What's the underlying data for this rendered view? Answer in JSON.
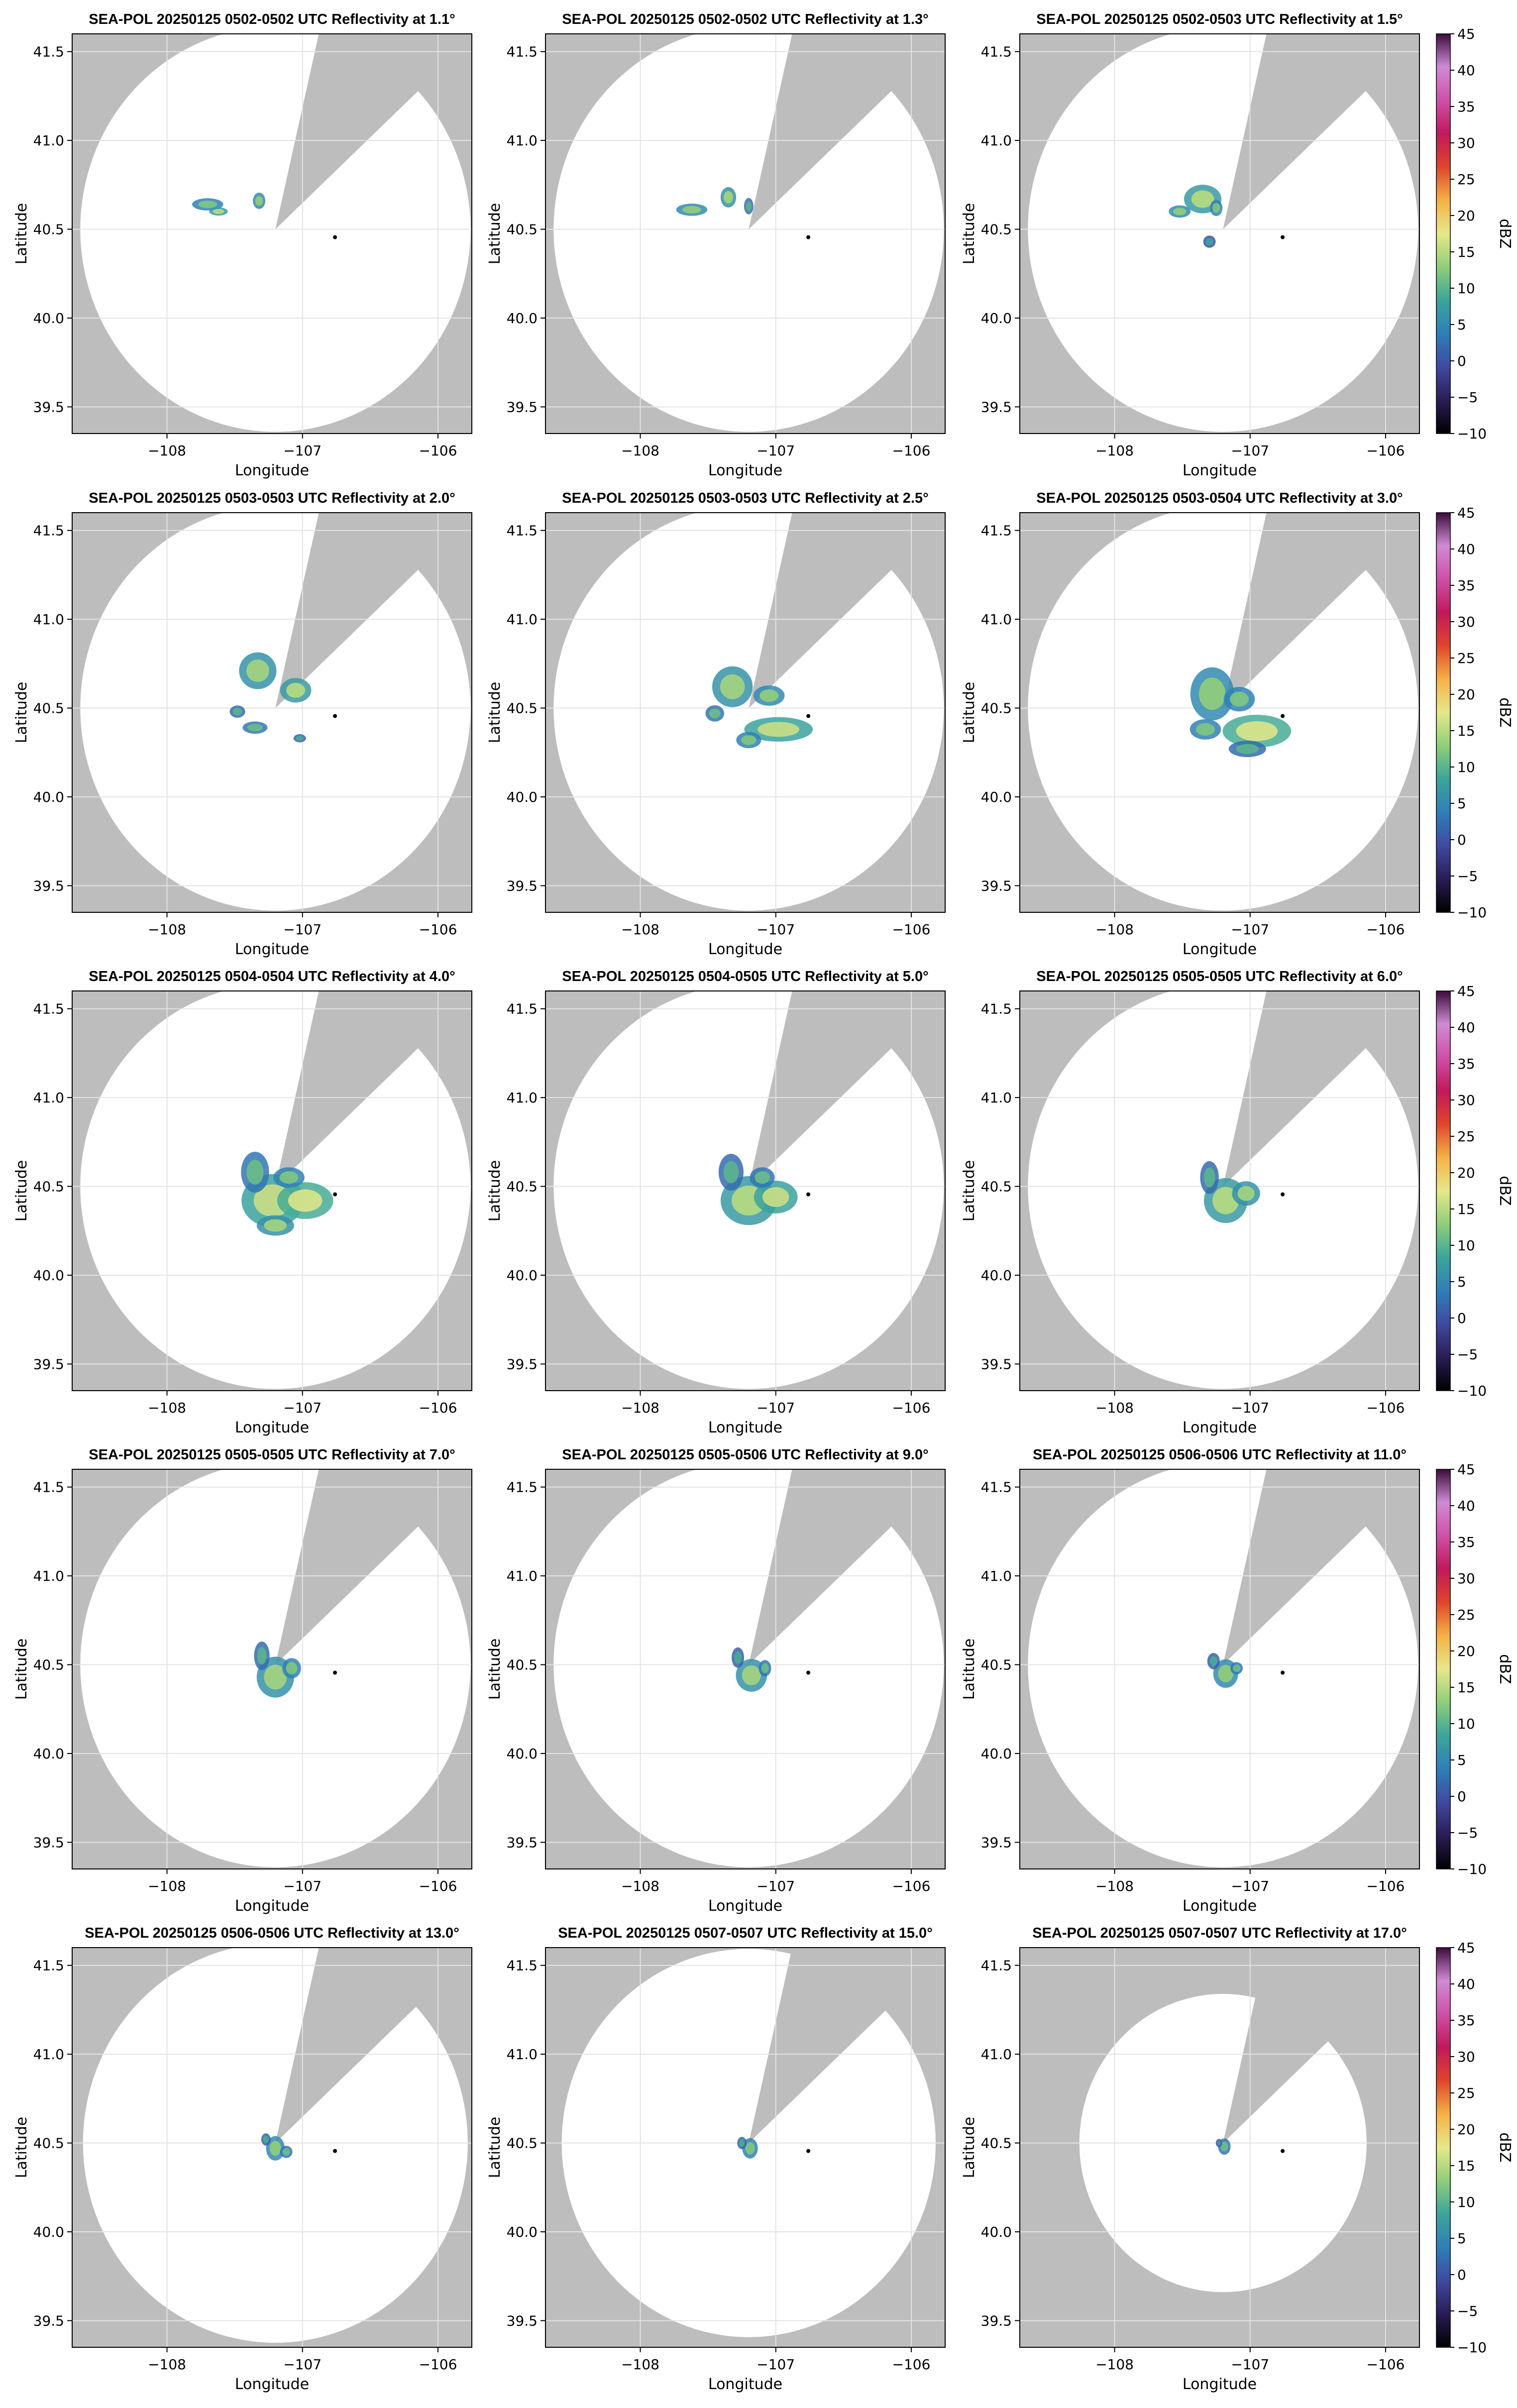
{
  "figure": {
    "rows": 5,
    "cols": 3
  },
  "colors": {
    "outside_coverage": "#bdbdbd",
    "coverage": "#ffffff",
    "grid": "#e3e3e3",
    "frame": "#000000",
    "marker": "#000000"
  },
  "colorbar": {
    "label": "dBZ",
    "ticks": [
      "45",
      "40",
      "35",
      "30",
      "25",
      "20",
      "15",
      "10",
      "5",
      "0",
      "−5",
      "−10"
    ],
    "min": -10,
    "max": 45,
    "stops": [
      "#000000",
      "#2b1c55",
      "#3f4aa0",
      "#2f7fb8",
      "#3ba59a",
      "#8fce7a",
      "#e6e88a",
      "#f5b244",
      "#e0452c",
      "#c2185b",
      "#d04fa6",
      "#cf8bd6",
      "#3d0c3c"
    ]
  },
  "chart_data": {
    "type": "heatmap",
    "xlabel": "Longitude",
    "ylabel": "Latitude",
    "xlim": [
      -108.7,
      -105.75
    ],
    "ylim": [
      39.35,
      41.6
    ],
    "xticks": [
      -108,
      -107,
      -106
    ],
    "xtick_labels": [
      "−108",
      "−107",
      "−106"
    ],
    "yticks": [
      39.5,
      40.0,
      40.5,
      41.0,
      41.5
    ],
    "ytick_labels": [
      "39.5",
      "40.0",
      "40.5",
      "41.0",
      "41.5"
    ],
    "radar_lon": -107.2,
    "radar_lat": 40.5,
    "marker_lon": -106.76,
    "marker_lat": 40.455,
    "panels": [
      {
        "title": "SEA-POL 20250125 0502-0502 UTC Reflectivity at 1.1°",
        "elevation": 1.1,
        "range_deg": 1.44,
        "echo": [
          [
            -107.7,
            40.64,
            0.1,
            0.03,
            10
          ],
          [
            -107.32,
            40.66,
            0.04,
            0.04,
            11
          ],
          [
            -107.62,
            40.6,
            0.06,
            0.02,
            13
          ]
        ]
      },
      {
        "title": "SEA-POL 20250125 0502-0502 UTC Reflectivity at 1.3°",
        "elevation": 1.3,
        "range_deg": 1.44,
        "echo": [
          [
            -107.62,
            40.61,
            0.1,
            0.03,
            11
          ],
          [
            -107.35,
            40.68,
            0.05,
            0.05,
            12
          ],
          [
            -107.2,
            40.63,
            0.03,
            0.04,
            8
          ]
        ]
      },
      {
        "title": "SEA-POL 20250125 0502-0503 UTC Reflectivity at 1.5°",
        "elevation": 1.5,
        "range_deg": 1.44,
        "echo": [
          [
            -107.35,
            40.67,
            0.12,
            0.07,
            13
          ],
          [
            -107.52,
            40.6,
            0.07,
            0.03,
            11
          ],
          [
            -107.25,
            40.62,
            0.04,
            0.04,
            10
          ],
          [
            -107.3,
            40.43,
            0.04,
            0.03,
            6
          ]
        ]
      },
      {
        "title": "SEA-POL 20250125 0503-0503 UTC Reflectivity at 2.0°",
        "elevation": 2.0,
        "range_deg": 1.44,
        "echo": [
          [
            -107.33,
            40.71,
            0.12,
            0.09,
            12
          ],
          [
            -107.05,
            40.6,
            0.1,
            0.06,
            13
          ],
          [
            -107.48,
            40.48,
            0.05,
            0.03,
            8
          ],
          [
            -107.35,
            40.39,
            0.08,
            0.03,
            9
          ],
          [
            -107.02,
            40.33,
            0.04,
            0.02,
            7
          ]
        ]
      },
      {
        "title": "SEA-POL 20250125 0503-0503 UTC Reflectivity at 2.5°",
        "elevation": 2.5,
        "range_deg": 1.44,
        "echo": [
          [
            -107.32,
            40.62,
            0.13,
            0.1,
            12
          ],
          [
            -106.98,
            40.38,
            0.22,
            0.06,
            14
          ],
          [
            -107.05,
            40.57,
            0.1,
            0.05,
            11
          ],
          [
            -107.45,
            40.47,
            0.06,
            0.04,
            9
          ],
          [
            -107.2,
            40.32,
            0.08,
            0.04,
            10
          ]
        ]
      },
      {
        "title": "SEA-POL 20250125 0503-0504 UTC Reflectivity at 3.0°",
        "elevation": 3.0,
        "range_deg": 1.44,
        "echo": [
          [
            -107.28,
            40.58,
            0.14,
            0.13,
            11
          ],
          [
            -106.95,
            40.37,
            0.22,
            0.08,
            15
          ],
          [
            -107.08,
            40.55,
            0.1,
            0.06,
            10
          ],
          [
            -107.33,
            40.38,
            0.1,
            0.05,
            10
          ],
          [
            -107.02,
            40.27,
            0.12,
            0.04,
            8
          ]
        ]
      },
      {
        "title": "SEA-POL 20250125 0504-0504 UTC Reflectivity at 4.0°",
        "elevation": 4.0,
        "range_deg": 1.44,
        "echo": [
          [
            -107.22,
            40.42,
            0.2,
            0.13,
            14
          ],
          [
            -106.98,
            40.42,
            0.18,
            0.09,
            15
          ],
          [
            -107.35,
            40.58,
            0.09,
            0.1,
            9
          ],
          [
            -107.1,
            40.55,
            0.1,
            0.05,
            10
          ],
          [
            -107.2,
            40.28,
            0.12,
            0.05,
            12
          ]
        ]
      },
      {
        "title": "SEA-POL 20250125 0504-0505 UTC Reflectivity at 5.0°",
        "elevation": 5.0,
        "range_deg": 1.44,
        "echo": [
          [
            -107.2,
            40.42,
            0.18,
            0.12,
            13
          ],
          [
            -107.0,
            40.44,
            0.14,
            0.08,
            14
          ],
          [
            -107.33,
            40.58,
            0.08,
            0.09,
            8
          ],
          [
            -107.1,
            40.55,
            0.08,
            0.05,
            9
          ]
        ]
      },
      {
        "title": "SEA-POL 20250125 0505-0505 UTC Reflectivity at 6.0°",
        "elevation": 6.0,
        "range_deg": 1.44,
        "echo": [
          [
            -107.18,
            40.42,
            0.14,
            0.11,
            13
          ],
          [
            -107.03,
            40.46,
            0.09,
            0.06,
            12
          ],
          [
            -107.3,
            40.55,
            0.06,
            0.08,
            8
          ]
        ]
      },
      {
        "title": "SEA-POL 20250125 0505-0505 UTC Reflectivity at 7.0°",
        "elevation": 7.0,
        "range_deg": 1.44,
        "echo": [
          [
            -107.2,
            40.43,
            0.12,
            0.1,
            12
          ],
          [
            -107.3,
            40.55,
            0.05,
            0.07,
            8
          ],
          [
            -107.08,
            40.48,
            0.06,
            0.05,
            10
          ]
        ]
      },
      {
        "title": "SEA-POL 20250125 0505-0506 UTC Reflectivity at 9.0°",
        "elevation": 9.0,
        "range_deg": 1.44,
        "echo": [
          [
            -107.18,
            40.44,
            0.1,
            0.08,
            12
          ],
          [
            -107.28,
            40.54,
            0.04,
            0.05,
            7
          ],
          [
            -107.08,
            40.48,
            0.04,
            0.04,
            9
          ]
        ]
      },
      {
        "title": "SEA-POL 20250125 0506-0506 UTC Reflectivity at 11.0°",
        "elevation": 11.0,
        "range_deg": 1.44,
        "echo": [
          [
            -107.18,
            40.45,
            0.08,
            0.07,
            11
          ],
          [
            -107.27,
            40.52,
            0.04,
            0.04,
            7
          ],
          [
            -107.1,
            40.48,
            0.04,
            0.03,
            9
          ]
        ]
      },
      {
        "title": "SEA-POL 20250125 0506-0506 UTC Reflectivity at 13.0°",
        "elevation": 13.0,
        "range_deg": 1.42,
        "echo": [
          [
            -107.2,
            40.47,
            0.06,
            0.06,
            11
          ],
          [
            -107.27,
            40.52,
            0.03,
            0.03,
            7
          ],
          [
            -107.12,
            40.45,
            0.04,
            0.03,
            9
          ]
        ]
      },
      {
        "title": "SEA-POL 20250125 0507-0507 UTC Reflectivity at 15.0°",
        "elevation": 15.0,
        "range_deg": 1.38,
        "echo": [
          [
            -107.19,
            40.47,
            0.05,
            0.05,
            10
          ],
          [
            -107.25,
            40.5,
            0.03,
            0.03,
            7
          ]
        ]
      },
      {
        "title": "SEA-POL 20250125 0507-0507 UTC Reflectivity at 17.0°",
        "elevation": 17.0,
        "range_deg": 1.06,
        "echo": [
          [
            -107.19,
            40.48,
            0.04,
            0.04,
            9
          ],
          [
            -107.23,
            40.5,
            0.02,
            0.02,
            6
          ]
        ]
      }
    ]
  }
}
